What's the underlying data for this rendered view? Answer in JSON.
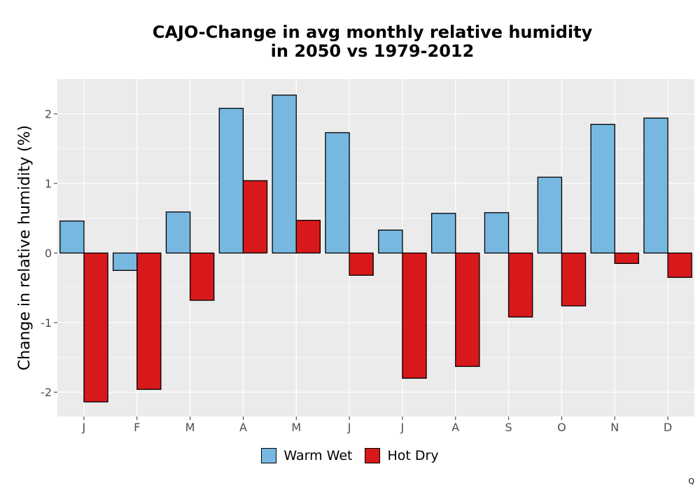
{
  "chart_data": {
    "type": "bar",
    "title_line1": "CAJO-Change in avg monthly relative humidity",
    "title_line2": "in 2050 vs 1979-2012",
    "xlabel": "",
    "ylabel": "Change in relative humidity (%)",
    "categories": [
      "J",
      "F",
      "M",
      "A",
      "M",
      "J",
      "J",
      "A",
      "S",
      "O",
      "N",
      "D"
    ],
    "series": [
      {
        "name": "Warm Wet",
        "color": "#77b8e0",
        "values": [
          0.46,
          -0.25,
          0.59,
          2.08,
          2.27,
          1.73,
          0.33,
          0.57,
          0.58,
          1.09,
          1.85,
          1.94
        ]
      },
      {
        "name": "Hot Dry",
        "color": "#d7191c",
        "values": [
          -2.14,
          -1.96,
          -0.68,
          1.04,
          0.47,
          -0.32,
          -1.8,
          -1.63,
          -0.92,
          -0.76,
          -0.15,
          -0.35
        ]
      }
    ],
    "ylim": [
      -2.35,
      2.5
    ],
    "yticks": [
      -2,
      -1,
      0,
      1,
      2
    ],
    "ytick_labels": [
      "-2",
      "-1",
      "0",
      "1",
      "2"
    ],
    "grid": true,
    "legend_position": "bottom"
  },
  "corner_mark": "Q"
}
